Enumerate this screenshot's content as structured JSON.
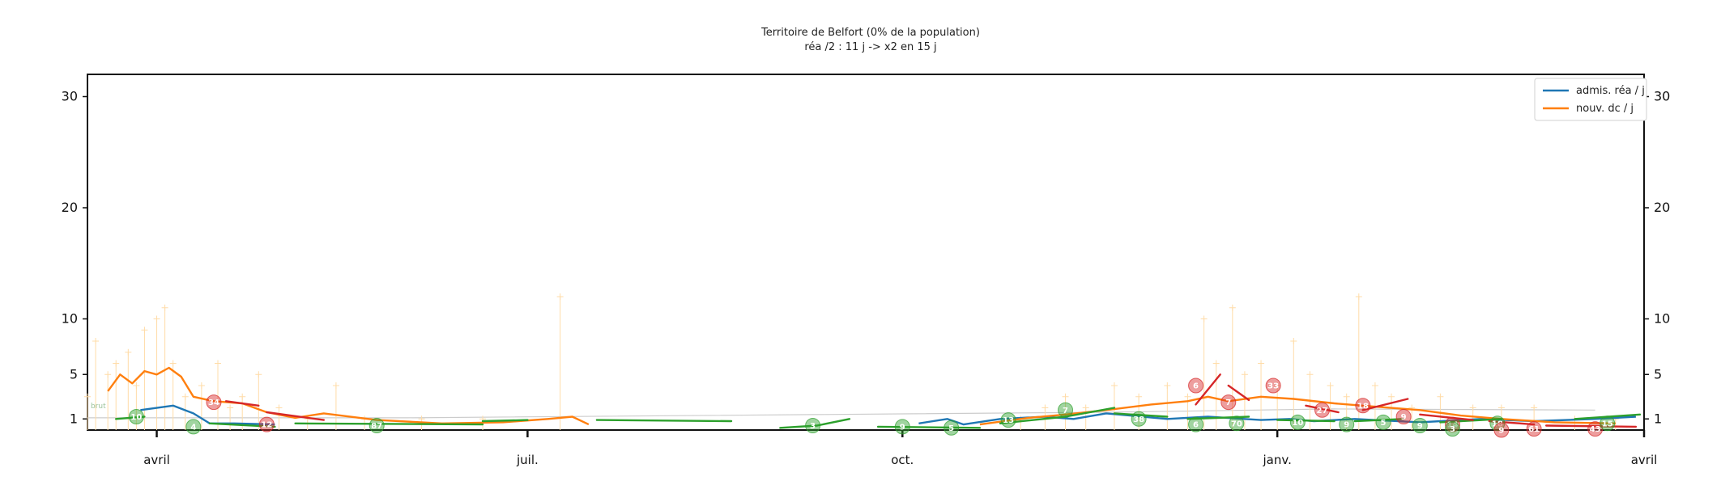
{
  "colors": {
    "reanimation": "#1f77b4",
    "deces": "#ff7f0e",
    "growth": "#2ca02c",
    "decline": "#d62728",
    "raw": "#ffdca8",
    "baseline": "#cccccc"
  },
  "chart_data": {
    "type": "line",
    "title": "Territoire de Belfort (0% de la population)",
    "subtitle": "réa /2 : 11 j -> x2 en 15 j",
    "xlabel": "",
    "ylabel": "",
    "x_range": [
      "2020-03-15",
      "2021-04-01"
    ],
    "ylim": [
      0,
      32
    ],
    "y_ticks": [
      1,
      5,
      10,
      20,
      30
    ],
    "y_tick_labels": [
      "1",
      "5",
      "10",
      "20",
      "30"
    ],
    "x_ticks": [
      {
        "date": "2020-04-01",
        "label": "avril"
      },
      {
        "date": "2020-07-01",
        "label": "juil."
      },
      {
        "date": "2020-10-01",
        "label": "oct."
      },
      {
        "date": "2021-01-01",
        "label": "janv."
      },
      {
        "date": "2021-04-01",
        "label": "avril"
      }
    ],
    "legend_position": "top-right",
    "grid": false,
    "raw_label": "brut",
    "series": [
      {
        "name": "admis. réa / j",
        "points": [
          [
            "2020-03-28",
            1.8
          ],
          [
            "2020-04-05",
            2.2
          ],
          [
            "2020-04-10",
            1.5
          ],
          [
            "2020-04-14",
            0.6
          ],
          [
            "2020-04-20",
            0.6
          ],
          [
            "2020-04-30",
            0.5
          ],
          [
            "2020-10-05",
            0.6
          ],
          [
            "2020-10-12",
            1.0
          ],
          [
            "2020-10-16",
            0.5
          ],
          [
            "2020-10-25",
            1.0
          ],
          [
            "2020-11-05",
            1.2
          ],
          [
            "2020-11-12",
            1.0
          ],
          [
            "2020-11-20",
            1.5
          ],
          [
            "2020-12-05",
            1.0
          ],
          [
            "2020-12-15",
            1.2
          ],
          [
            "2020-12-28",
            0.9
          ],
          [
            "2021-01-04",
            1.0
          ],
          [
            "2021-01-10",
            0.8
          ],
          [
            "2021-01-20",
            1.0
          ],
          [
            "2021-02-05",
            0.7
          ],
          [
            "2021-02-20",
            1.0
          ],
          [
            "2021-03-05",
            0.8
          ],
          [
            "2021-03-20",
            1.0
          ],
          [
            "2021-03-30",
            1.2
          ]
        ]
      },
      {
        "name": "nouv. dc / j",
        "points": [
          [
            "2020-03-20",
            3.5
          ],
          [
            "2020-03-23",
            5.0
          ],
          [
            "2020-03-26",
            4.2
          ],
          [
            "2020-03-29",
            5.3
          ],
          [
            "2020-04-01",
            5.0
          ],
          [
            "2020-04-04",
            5.6
          ],
          [
            "2020-04-07",
            4.8
          ],
          [
            "2020-04-10",
            3.0
          ],
          [
            "2020-04-15",
            2.6
          ],
          [
            "2020-04-22",
            2.4
          ],
          [
            "2020-04-28",
            1.6
          ],
          [
            "2020-05-05",
            1.1
          ],
          [
            "2020-05-12",
            1.5
          ],
          [
            "2020-05-25",
            0.9
          ],
          [
            "2020-06-10",
            0.6
          ],
          [
            "2020-06-25",
            0.7
          ],
          [
            "2020-07-06",
            1.0
          ],
          [
            "2020-07-12",
            1.2
          ],
          [
            "2020-07-16",
            0.5
          ],
          [
            "2020-10-20",
            0.5
          ],
          [
            "2020-11-01",
            1.1
          ],
          [
            "2020-11-10",
            1.4
          ],
          [
            "2020-11-20",
            1.8
          ],
          [
            "2020-12-01",
            2.3
          ],
          [
            "2020-12-10",
            2.6
          ],
          [
            "2020-12-15",
            3.0
          ],
          [
            "2020-12-20",
            2.6
          ],
          [
            "2020-12-28",
            3.0
          ],
          [
            "2021-01-05",
            2.8
          ],
          [
            "2021-01-15",
            2.4
          ],
          [
            "2021-01-25",
            2.1
          ],
          [
            "2021-02-05",
            1.8
          ],
          [
            "2021-02-15",
            1.3
          ],
          [
            "2021-02-25",
            1.0
          ],
          [
            "2021-03-10",
            0.7
          ],
          [
            "2021-03-25",
            0.6
          ]
        ]
      }
    ],
    "segments": [
      {
        "kind": "growth",
        "points": [
          [
            "2020-03-22",
            1.0
          ],
          [
            "2020-03-29",
            1.2
          ]
        ]
      },
      {
        "kind": "growth",
        "points": [
          [
            "2020-04-14",
            0.6
          ],
          [
            "2020-04-30",
            0.3
          ]
        ]
      },
      {
        "kind": "decline",
        "points": [
          [
            "2020-04-18",
            2.6
          ],
          [
            "2020-04-26",
            2.2
          ]
        ]
      },
      {
        "kind": "decline",
        "points": [
          [
            "2020-04-28",
            1.6
          ],
          [
            "2020-05-12",
            0.9
          ]
        ]
      },
      {
        "kind": "growth",
        "points": [
          [
            "2020-05-05",
            0.6
          ],
          [
            "2020-06-20",
            0.5
          ]
        ]
      },
      {
        "kind": "growth",
        "points": [
          [
            "2020-06-20",
            0.8
          ],
          [
            "2020-07-01",
            0.9
          ]
        ]
      },
      {
        "kind": "growth",
        "points": [
          [
            "2020-07-18",
            0.9
          ],
          [
            "2020-08-20",
            0.8
          ]
        ]
      },
      {
        "kind": "growth",
        "points": [
          [
            "2020-09-01",
            0.2
          ],
          [
            "2020-09-10",
            0.4
          ],
          [
            "2020-09-18",
            1.0
          ]
        ]
      },
      {
        "kind": "growth",
        "points": [
          [
            "2020-09-25",
            0.3
          ],
          [
            "2020-10-20",
            0.2
          ]
        ]
      },
      {
        "kind": "growth",
        "points": [
          [
            "2020-10-25",
            0.6
          ],
          [
            "2020-11-10",
            1.2
          ]
        ]
      },
      {
        "kind": "growth",
        "points": [
          [
            "2020-11-10",
            1.2
          ],
          [
            "2020-11-22",
            2.0
          ]
        ]
      },
      {
        "kind": "growth",
        "points": [
          [
            "2020-11-22",
            1.5
          ],
          [
            "2020-12-05",
            1.2
          ]
        ]
      },
      {
        "kind": "growth",
        "points": [
          [
            "2020-12-10",
            1.0
          ],
          [
            "2020-12-25",
            1.2
          ]
        ]
      },
      {
        "kind": "growth",
        "points": [
          [
            "2021-01-01",
            0.9
          ],
          [
            "2021-01-15",
            0.8
          ]
        ]
      },
      {
        "kind": "growth",
        "points": [
          [
            "2021-01-20",
            0.8
          ],
          [
            "2021-02-01",
            1.0
          ]
        ]
      },
      {
        "kind": "growth",
        "points": [
          [
            "2021-02-10",
            0.7
          ],
          [
            "2021-02-25",
            1.0
          ]
        ]
      },
      {
        "kind": "growth",
        "points": [
          [
            "2021-03-15",
            1.0
          ],
          [
            "2021-03-31",
            1.4
          ]
        ]
      },
      {
        "kind": "decline",
        "points": [
          [
            "2020-12-12",
            2.3
          ],
          [
            "2020-12-18",
            5.0
          ]
        ]
      },
      {
        "kind": "decline",
        "points": [
          [
            "2020-12-20",
            4.0
          ],
          [
            "2020-12-25",
            2.7
          ]
        ]
      },
      {
        "kind": "decline",
        "points": [
          [
            "2021-01-08",
            2.2
          ],
          [
            "2021-01-16",
            1.6
          ]
        ]
      },
      {
        "kind": "decline",
        "points": [
          [
            "2021-01-22",
            1.8
          ],
          [
            "2021-02-02",
            2.8
          ]
        ]
      },
      {
        "kind": "decline",
        "points": [
          [
            "2021-02-05",
            1.4
          ],
          [
            "2021-02-18",
            0.9
          ]
        ]
      },
      {
        "kind": "decline",
        "points": [
          [
            "2021-02-22",
            0.8
          ],
          [
            "2021-03-05",
            0.5
          ]
        ]
      },
      {
        "kind": "decline",
        "points": [
          [
            "2021-03-08",
            0.4
          ],
          [
            "2021-03-30",
            0.3
          ]
        ]
      }
    ],
    "raw_points": [
      [
        "2020-03-15",
        3
      ],
      [
        "2020-03-17",
        8
      ],
      [
        "2020-03-20",
        5
      ],
      [
        "2020-03-22",
        6
      ],
      [
        "2020-03-25",
        7
      ],
      [
        "2020-03-27",
        4
      ],
      [
        "2020-03-29",
        9
      ],
      [
        "2020-04-01",
        10
      ],
      [
        "2020-04-03",
        11
      ],
      [
        "2020-04-05",
        6
      ],
      [
        "2020-04-08",
        3
      ],
      [
        "2020-04-12",
        4
      ],
      [
        "2020-04-16",
        6
      ],
      [
        "2020-04-19",
        2
      ],
      [
        "2020-04-22",
        3
      ],
      [
        "2020-04-26",
        5
      ],
      [
        "2020-05-01",
        2
      ],
      [
        "2020-05-08",
        1
      ],
      [
        "2020-05-15",
        4
      ],
      [
        "2020-05-22",
        1
      ],
      [
        "2020-06-05",
        1
      ],
      [
        "2020-06-20",
        1
      ],
      [
        "2020-07-09",
        12
      ],
      [
        "2020-10-30",
        1
      ],
      [
        "2020-11-05",
        2
      ],
      [
        "2020-11-10",
        3
      ],
      [
        "2020-11-15",
        2
      ],
      [
        "2020-11-22",
        4
      ],
      [
        "2020-11-28",
        3
      ],
      [
        "2020-12-05",
        4
      ],
      [
        "2020-12-10",
        3
      ],
      [
        "2020-12-14",
        10
      ],
      [
        "2020-12-17",
        6
      ],
      [
        "2020-12-21",
        11
      ],
      [
        "2020-12-24",
        5
      ],
      [
        "2020-12-28",
        6
      ],
      [
        "2021-01-01",
        4
      ],
      [
        "2021-01-05",
        8
      ],
      [
        "2021-01-09",
        5
      ],
      [
        "2021-01-14",
        4
      ],
      [
        "2021-01-18",
        3
      ],
      [
        "2021-01-21",
        12
      ],
      [
        "2021-01-25",
        4
      ],
      [
        "2021-01-29",
        3
      ],
      [
        "2021-02-03",
        2
      ],
      [
        "2021-02-10",
        3
      ],
      [
        "2021-02-18",
        2
      ],
      [
        "2021-02-25",
        2
      ],
      [
        "2021-03-05",
        2
      ],
      [
        "2021-03-15",
        1
      ],
      [
        "2021-03-25",
        1
      ]
    ],
    "badges": [
      {
        "date": "2020-03-27",
        "y": 1.2,
        "label": "10",
        "kind": "growth"
      },
      {
        "date": "2020-04-15",
        "y": 2.5,
        "label": "34",
        "kind": "decline"
      },
      {
        "date": "2020-04-10",
        "y": 0.3,
        "label": "4",
        "kind": "growth"
      },
      {
        "date": "2020-04-28",
        "y": 0.5,
        "label": "12",
        "kind": "decline"
      },
      {
        "date": "2020-05-25",
        "y": 0.4,
        "label": "87",
        "kind": "growth"
      },
      {
        "date": "2020-09-09",
        "y": 0.4,
        "label": "3",
        "kind": "growth"
      },
      {
        "date": "2020-10-01",
        "y": 0.3,
        "label": "9",
        "kind": "growth"
      },
      {
        "date": "2020-10-13",
        "y": 0.2,
        "label": "5",
        "kind": "growth"
      },
      {
        "date": "2020-10-27",
        "y": 0.9,
        "label": "13",
        "kind": "growth"
      },
      {
        "date": "2020-11-10",
        "y": 1.8,
        "label": "7",
        "kind": "growth"
      },
      {
        "date": "2020-11-28",
        "y": 1.0,
        "label": "38",
        "kind": "growth"
      },
      {
        "date": "2020-12-12",
        "y": 4.0,
        "label": "6",
        "kind": "decline"
      },
      {
        "date": "2020-12-12",
        "y": 0.5,
        "label": "6",
        "kind": "growth"
      },
      {
        "date": "2020-12-20",
        "y": 2.5,
        "label": "7",
        "kind": "decline"
      },
      {
        "date": "2020-12-22",
        "y": 0.6,
        "label": "70",
        "kind": "growth"
      },
      {
        "date": "2020-12-31",
        "y": 4.0,
        "label": "33",
        "kind": "decline"
      },
      {
        "date": "2021-01-06",
        "y": 0.7,
        "label": "10",
        "kind": "growth"
      },
      {
        "date": "2021-01-12",
        "y": 1.8,
        "label": "27",
        "kind": "decline"
      },
      {
        "date": "2021-01-18",
        "y": 0.5,
        "label": "9",
        "kind": "growth"
      },
      {
        "date": "2021-01-22",
        "y": 2.2,
        "label": "18",
        "kind": "decline"
      },
      {
        "date": "2021-01-27",
        "y": 0.7,
        "label": "5",
        "kind": "growth"
      },
      {
        "date": "2021-02-01",
        "y": 1.2,
        "label": "9",
        "kind": "decline"
      },
      {
        "date": "2021-02-05",
        "y": 0.4,
        "label": "9",
        "kind": "growth"
      },
      {
        "date": "2021-02-13",
        "y": 0.5,
        "label": "14",
        "kind": "decline"
      },
      {
        "date": "2021-02-13",
        "y": 0.1,
        "label": "3",
        "kind": "growth"
      },
      {
        "date": "2021-02-24",
        "y": 0.6,
        "label": "18",
        "kind": "growth"
      },
      {
        "date": "2021-02-25",
        "y": 0.0,
        "label": "9",
        "kind": "decline"
      },
      {
        "date": "2021-03-05",
        "y": 0.1,
        "label": "61",
        "kind": "decline"
      },
      {
        "date": "2021-03-20",
        "y": 0.1,
        "label": "43",
        "kind": "decline"
      },
      {
        "date": "2021-03-23",
        "y": 0.6,
        "label": "15",
        "kind": "growth"
      }
    ]
  }
}
